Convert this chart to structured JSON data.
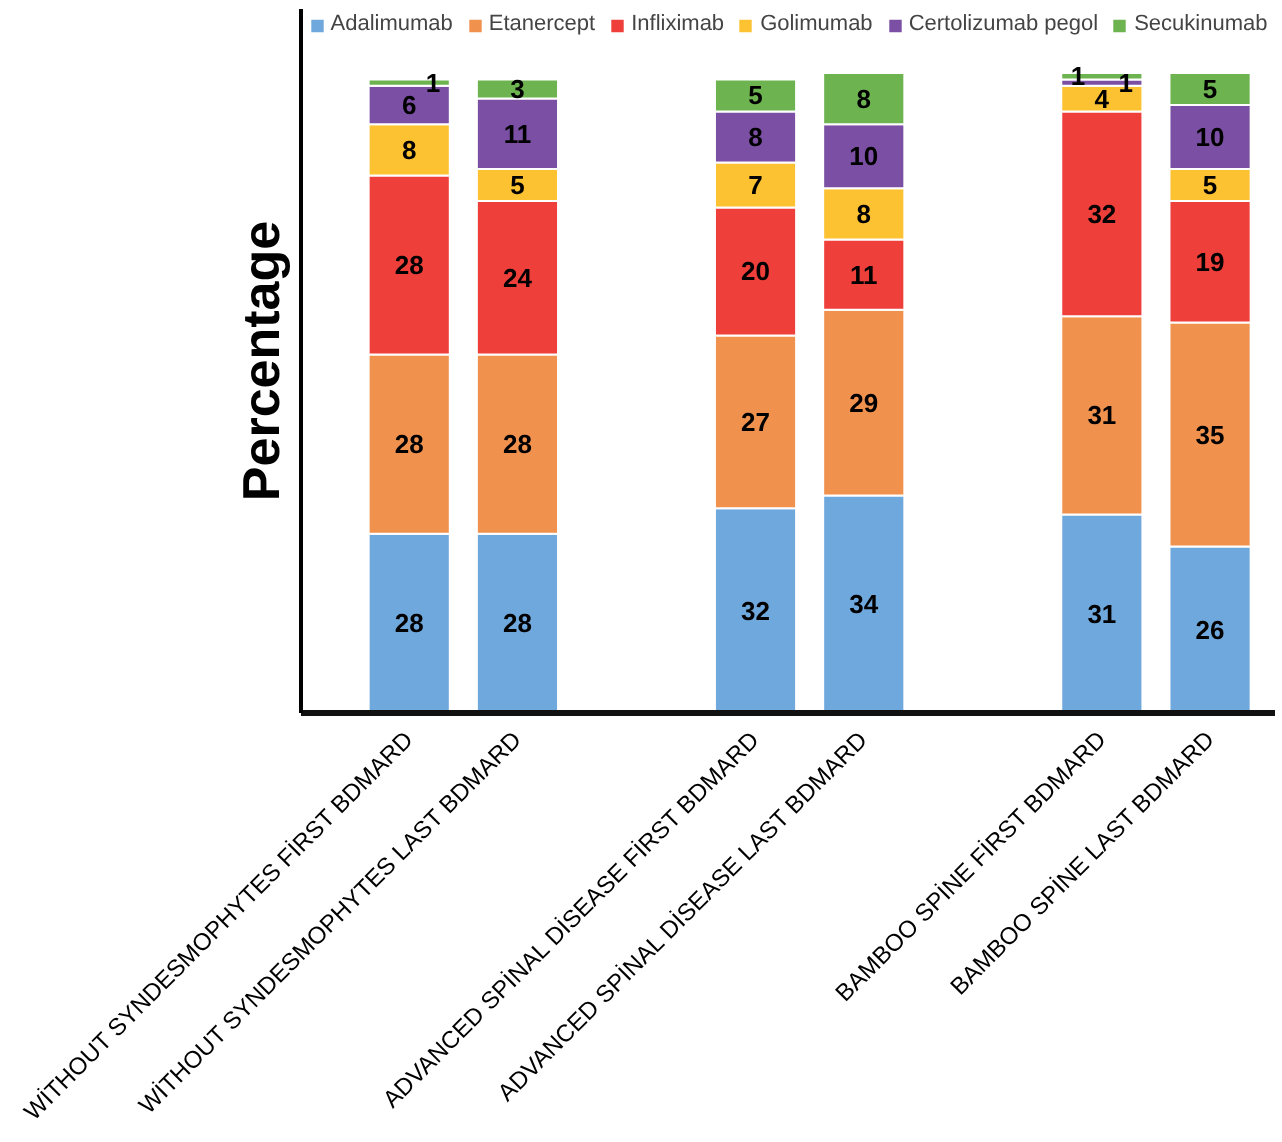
{
  "chart_data": {
    "type": "bar",
    "stacked": true,
    "ylabel": "Percentage",
    "data_labels": true,
    "legend": "top",
    "categories": [
      "WİTHOUT SYNDESMOPHYTES FİRST BDMARD",
      "WİTHOUT SYNDESMOPHYTES LAST BDMARD",
      "ADVANCED SPİNAL DİSEASE FİRST BDMARD",
      "ADVANCED SPİNAL DİSEASE LAST BDMARD",
      "BAMBOO SPİNE FİRST BDMARD",
      "BAMBOO SPİNE LAST BDMARD"
    ],
    "series": [
      {
        "name": "Adalimumab",
        "color": "#6fa8dc",
        "values": [
          28,
          28,
          32,
          34,
          31,
          26
        ]
      },
      {
        "name": "Etanercept",
        "color": "#f0914e",
        "values": [
          28,
          28,
          27,
          29,
          31,
          35
        ]
      },
      {
        "name": "Infliximab",
        "color": "#ee3f3a",
        "values": [
          28,
          24,
          20,
          11,
          32,
          19
        ]
      },
      {
        "name": "Golimumab",
        "color": "#fdc232",
        "values": [
          8,
          5,
          7,
          8,
          4,
          5
        ]
      },
      {
        "name": "Certolizumab pegol",
        "color": "#7b4fa3",
        "values": [
          6,
          11,
          8,
          10,
          1,
          10
        ]
      },
      {
        "name": "Secukinumab",
        "color": "#6db350",
        "values": [
          1,
          3,
          5,
          8,
          1,
          5
        ]
      }
    ]
  }
}
